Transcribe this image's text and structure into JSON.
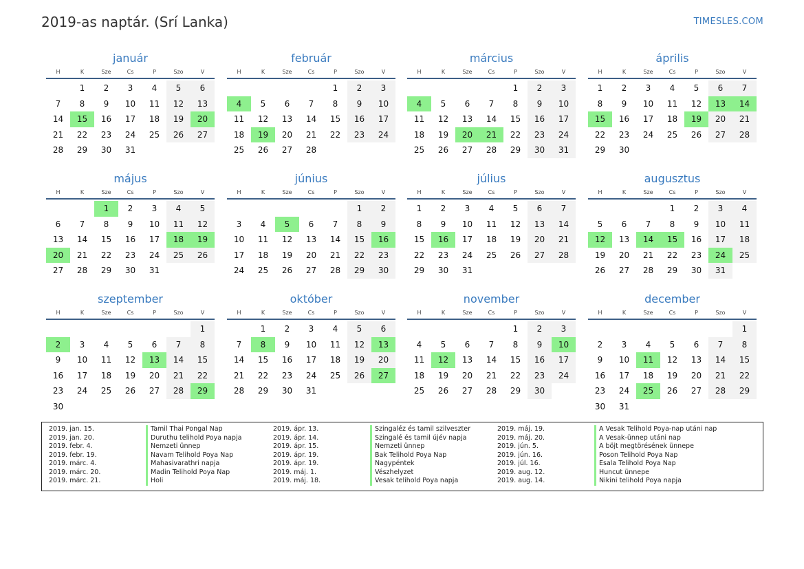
{
  "header": {
    "title": "2019-as naptár. (Srí Lanka)",
    "brand": "TIMESLES.COM"
  },
  "weekdays": [
    "H",
    "K",
    "Sze",
    "Cs",
    "P",
    "Szo",
    "V"
  ],
  "months": [
    {
      "name": "január",
      "offset": 1,
      "days": 31,
      "holidays": [
        15,
        20
      ]
    },
    {
      "name": "február",
      "offset": 4,
      "days": 28,
      "holidays": [
        4,
        19
      ]
    },
    {
      "name": "március",
      "offset": 4,
      "days": 31,
      "holidays": [
        4,
        20,
        21
      ]
    },
    {
      "name": "április",
      "offset": 0,
      "days": 30,
      "holidays": [
        13,
        14,
        15,
        19
      ]
    },
    {
      "name": "május",
      "offset": 2,
      "days": 31,
      "holidays": [
        1,
        18,
        19,
        20
      ]
    },
    {
      "name": "június",
      "offset": 5,
      "days": 30,
      "holidays": [
        5,
        16
      ]
    },
    {
      "name": "július",
      "offset": 0,
      "days": 31,
      "holidays": [
        16
      ]
    },
    {
      "name": "augusztus",
      "offset": 3,
      "days": 31,
      "holidays": [
        12,
        14,
        15,
        24
      ]
    },
    {
      "name": "szeptember",
      "offset": 6,
      "days": 30,
      "holidays": [
        2,
        13,
        29
      ]
    },
    {
      "name": "október",
      "offset": 1,
      "days": 31,
      "holidays": [
        8,
        13,
        27
      ]
    },
    {
      "name": "november",
      "offset": 4,
      "days": 30,
      "holidays": [
        10,
        12
      ]
    },
    {
      "name": "december",
      "offset": 6,
      "days": 31,
      "holidays": [
        11,
        25
      ]
    }
  ],
  "legend": [
    [
      {
        "date": "2019. jan. 15.",
        "name": "Tamil Thai Pongal Nap"
      },
      {
        "date": "2019. jan. 20.",
        "name": "Duruthu telihold Poya napja"
      },
      {
        "date": "2019. febr. 4.",
        "name": "Nemzeti ünnep"
      },
      {
        "date": "2019. febr. 19.",
        "name": "Navam Telihold Poya Nap"
      },
      {
        "date": "2019. márc. 4.",
        "name": "Mahasivarathri napja"
      },
      {
        "date": "2019. márc. 20.",
        "name": "Madin Telihold Poya Nap"
      },
      {
        "date": "2019. márc. 21.",
        "name": "Holi"
      }
    ],
    [
      {
        "date": "2019. ápr. 13.",
        "name": "Szingaléz és tamil szilveszter"
      },
      {
        "date": "2019. ápr. 14.",
        "name": "Szingalé és tamil újév napja"
      },
      {
        "date": "2019. ápr. 15.",
        "name": "Nemzeti ünnep"
      },
      {
        "date": "2019. ápr. 19.",
        "name": "Bak Telihold Poya Nap"
      },
      {
        "date": "2019. ápr. 19.",
        "name": "Nagypéntek"
      },
      {
        "date": "2019. máj. 1.",
        "name": "Vészhelyzet"
      },
      {
        "date": "2019. máj. 18.",
        "name": "Vesak telihold Poya napja"
      }
    ],
    [
      {
        "date": "2019. máj. 19.",
        "name": "A Vesak Telihold Poya-nap utáni nap"
      },
      {
        "date": "2019. máj. 20.",
        "name": "A Vesak-ünnep utáni nap"
      },
      {
        "date": "2019. jún. 5.",
        "name": "A böjt megtörésének ünnepe"
      },
      {
        "date": "2019. jún. 16.",
        "name": "Poson Telihold Poya Nap"
      },
      {
        "date": "2019. júl. 16.",
        "name": "Esala Telihold Poya Nap"
      },
      {
        "date": "2019. aug. 12.",
        "name": "Huncut ünnepe"
      },
      {
        "date": "2019. aug. 14.",
        "name": "Nikini telihold Poya napja"
      }
    ]
  ],
  "colors": {
    "accent": "#3a7bbf",
    "holiday": "#8ef08e",
    "weekend": "#f2f2f2",
    "rule": "#3d5f87"
  }
}
